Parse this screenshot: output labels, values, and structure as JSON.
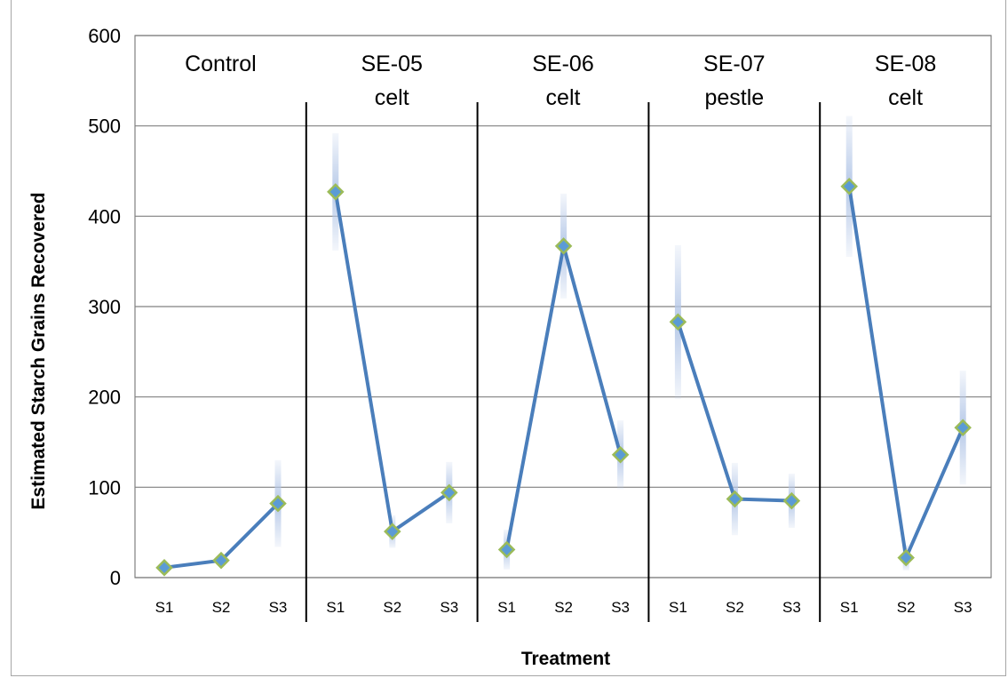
{
  "chart_data": {
    "type": "line",
    "xlabel": "Treatment",
    "ylabel": "Estimated Starch Grains Recovered",
    "ylim": [
      0,
      600
    ],
    "yticks": [
      "0",
      "100",
      "200",
      "300",
      "400",
      "500",
      "600"
    ],
    "grid": true,
    "colors": {
      "line": "#4a7ebb",
      "marker_fill": "#5b9bd5",
      "marker_edge": "#9bbb59",
      "error": "#b4c7e7",
      "plot_bg": "#ffffff",
      "grid": "#808080"
    },
    "groups": [
      {
        "label_lines": [
          "Control"
        ],
        "categories": [
          "S1",
          "S2",
          "S3"
        ],
        "values": [
          11,
          19,
          82
        ],
        "error": [
          3,
          5,
          48
        ]
      },
      {
        "label_lines": [
          "SE-05",
          "celt"
        ],
        "categories": [
          "S1",
          "S2",
          "S3"
        ],
        "values": [
          427,
          51,
          94
        ],
        "error": [
          65,
          18,
          34
        ]
      },
      {
        "label_lines": [
          "SE-06",
          "celt"
        ],
        "categories": [
          "S1",
          "S2",
          "S3"
        ],
        "values": [
          31,
          367,
          136
        ],
        "error": [
          22,
          58,
          38
        ]
      },
      {
        "label_lines": [
          "SE-07",
          "pestle"
        ],
        "categories": [
          "S1",
          "S2",
          "S3"
        ],
        "values": [
          283,
          87,
          85
        ],
        "error": [
          85,
          40,
          30
        ]
      },
      {
        "label_lines": [
          "SE-08",
          "celt"
        ],
        "categories": [
          "S1",
          "S2",
          "S3"
        ],
        "values": [
          433,
          22,
          166
        ],
        "error": [
          78,
          14,
          63
        ]
      }
    ]
  }
}
